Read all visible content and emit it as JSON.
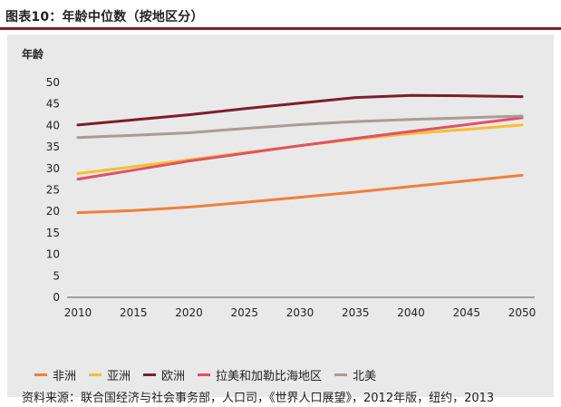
{
  "header": {
    "title": "图表10：年龄中位数（按地区分）"
  },
  "source_note": "资料来源：联合国经济与社会事务部，人口司，《世界人口展望》，2012年版，纽约，2013",
  "chart_data": {
    "type": "line",
    "title": "图表10：年龄中位数（按地区分）",
    "ylabel": "年龄",
    "xlabel": "",
    "x": [
      2010,
      2015,
      2020,
      2025,
      2030,
      2035,
      2040,
      2045,
      2050
    ],
    "ylim": [
      0,
      50
    ],
    "yticks": [
      0,
      5,
      10,
      15,
      20,
      25,
      30,
      35,
      40,
      45,
      50
    ],
    "grid": false,
    "legend_position": "bottom",
    "series": [
      {
        "name": "非洲",
        "color": "#f07f3c",
        "values": [
          19.7,
          20.2,
          21.0,
          22.1,
          23.3,
          24.5,
          25.8,
          27.1,
          28.4
        ]
      },
      {
        "name": "亚洲",
        "color": "#f5bf2e",
        "values": [
          28.8,
          30.4,
          32.0,
          33.7,
          35.3,
          36.8,
          38.1,
          39.1,
          40.1
        ]
      },
      {
        "name": "欧洲",
        "color": "#7a1f2b",
        "values": [
          40.1,
          41.3,
          42.5,
          43.9,
          45.2,
          46.5,
          47.0,
          46.9,
          46.7
        ]
      },
      {
        "name": "拉美和加勒比海地区",
        "color": "#e0506a",
        "values": [
          27.5,
          29.6,
          31.7,
          33.5,
          35.3,
          37.0,
          38.6,
          40.2,
          41.8
        ]
      },
      {
        "name": "北美",
        "color": "#a89c96",
        "values": [
          37.2,
          37.7,
          38.3,
          39.3,
          40.2,
          40.9,
          41.4,
          41.8,
          42.2
        ]
      }
    ]
  }
}
